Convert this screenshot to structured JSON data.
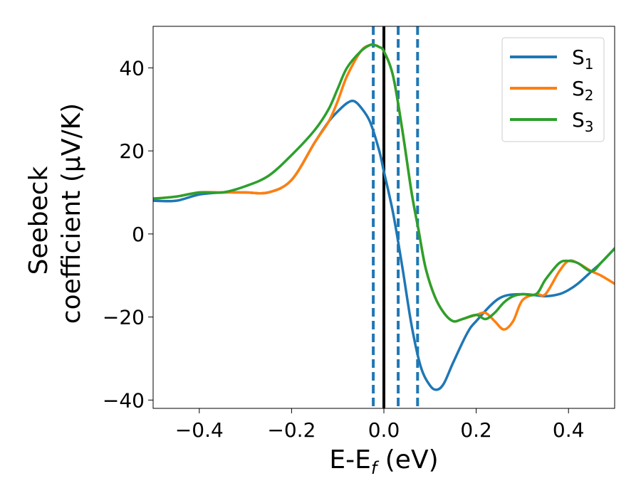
{
  "chart_data": {
    "type": "line",
    "xlabel": "E-E",
    "xlabel_sub": "f",
    "xlabel_suffix": " (eV)",
    "ylabel_line1": "Seebeck",
    "ylabel_line2": "coefficient  (μV/K)",
    "xlim": [
      -0.5,
      0.5
    ],
    "ylim": [
      -42,
      50
    ],
    "xticks": [
      -0.4,
      -0.2,
      0.0,
      0.2,
      0.4
    ],
    "xtick_labels": [
      "−0.4",
      "−0.2",
      "0.0",
      "0.2",
      "0.4"
    ],
    "yticks": [
      -40,
      -20,
      0,
      20,
      40
    ],
    "ytick_labels": [
      "−40",
      "−20",
      "0",
      "20",
      "40"
    ],
    "grid": false,
    "legend_position": "top-right",
    "vertical_lines": [
      {
        "x": 0.0,
        "style": "solid",
        "color": "#000000"
      },
      {
        "x": -0.023,
        "style": "dashed",
        "color": "#1f77b4"
      },
      {
        "x": 0.031,
        "style": "dashed",
        "color": "#1f77b4"
      },
      {
        "x": 0.073,
        "style": "dashed",
        "color": "#1f77b4"
      }
    ],
    "series": [
      {
        "name": "S",
        "sub": "1",
        "color": "#1f77b4",
        "x": [
          -0.5,
          -0.45,
          -0.4,
          -0.35,
          -0.3,
          -0.25,
          -0.2,
          -0.15,
          -0.12,
          -0.1,
          -0.08,
          -0.065,
          -0.05,
          -0.03,
          -0.01,
          0.0,
          0.02,
          0.04,
          0.06,
          0.08,
          0.1,
          0.115,
          0.13,
          0.15,
          0.18,
          0.2,
          0.25,
          0.3,
          0.35,
          0.38,
          0.4,
          0.42,
          0.45,
          0.47,
          0.5
        ],
        "y": [
          8,
          8,
          9.5,
          10,
          10,
          10,
          13,
          22,
          27,
          29.5,
          31.5,
          32,
          30.5,
          27,
          20,
          15,
          5,
          -8,
          -22,
          -32,
          -36.5,
          -37.5,
          -36,
          -31,
          -24,
          -21,
          -15.5,
          -14.5,
          -15,
          -14.5,
          -13.5,
          -12,
          -9,
          -7,
          -3.5
        ]
      },
      {
        "name": "S",
        "sub": "2",
        "color": "#ff7f0e",
        "x": [
          -0.5,
          -0.45,
          -0.4,
          -0.35,
          -0.3,
          -0.25,
          -0.2,
          -0.15,
          -0.12,
          -0.1,
          -0.08,
          -0.05,
          -0.03,
          -0.02,
          -0.01,
          0.0,
          0.02,
          0.04,
          0.06,
          0.075,
          0.09,
          0.11,
          0.13,
          0.15,
          0.17,
          0.2,
          0.22,
          0.24,
          0.26,
          0.28,
          0.3,
          0.33,
          0.35,
          0.38,
          0.4,
          0.42,
          0.45,
          0.47,
          0.5
        ],
        "y": [
          8.5,
          9,
          10,
          10,
          10,
          10,
          13,
          22,
          27,
          32,
          38,
          44,
          45.5,
          45.5,
          45,
          44,
          38,
          25,
          10,
          1,
          -8,
          -15,
          -19,
          -21,
          -20.5,
          -19.5,
          -19,
          -21,
          -23,
          -21,
          -16,
          -14.5,
          -14.5,
          -9,
          -6.5,
          -7,
          -9,
          -10,
          -12
        ]
      },
      {
        "name": "S",
        "sub": "3",
        "color": "#2ca02c",
        "x": [
          -0.5,
          -0.45,
          -0.4,
          -0.35,
          -0.3,
          -0.25,
          -0.2,
          -0.15,
          -0.12,
          -0.1,
          -0.08,
          -0.05,
          -0.03,
          -0.02,
          -0.01,
          0.0,
          0.02,
          0.04,
          0.06,
          0.075,
          0.09,
          0.11,
          0.13,
          0.15,
          0.17,
          0.2,
          0.22,
          0.24,
          0.26,
          0.28,
          0.3,
          0.33,
          0.35,
          0.38,
          0.4,
          0.42,
          0.45,
          0.47,
          0.5
        ],
        "y": [
          8.5,
          9,
          10,
          10,
          11.5,
          14,
          19,
          25,
          30,
          35,
          40,
          44,
          45.5,
          45.5,
          45,
          44,
          38,
          25,
          10,
          1,
          -8,
          -15,
          -19,
          -21,
          -20.5,
          -19.5,
          -20.5,
          -19,
          -16.5,
          -15,
          -14.5,
          -14.5,
          -11,
          -7,
          -6.5,
          -7,
          -9,
          -7,
          -3.5
        ]
      }
    ]
  }
}
